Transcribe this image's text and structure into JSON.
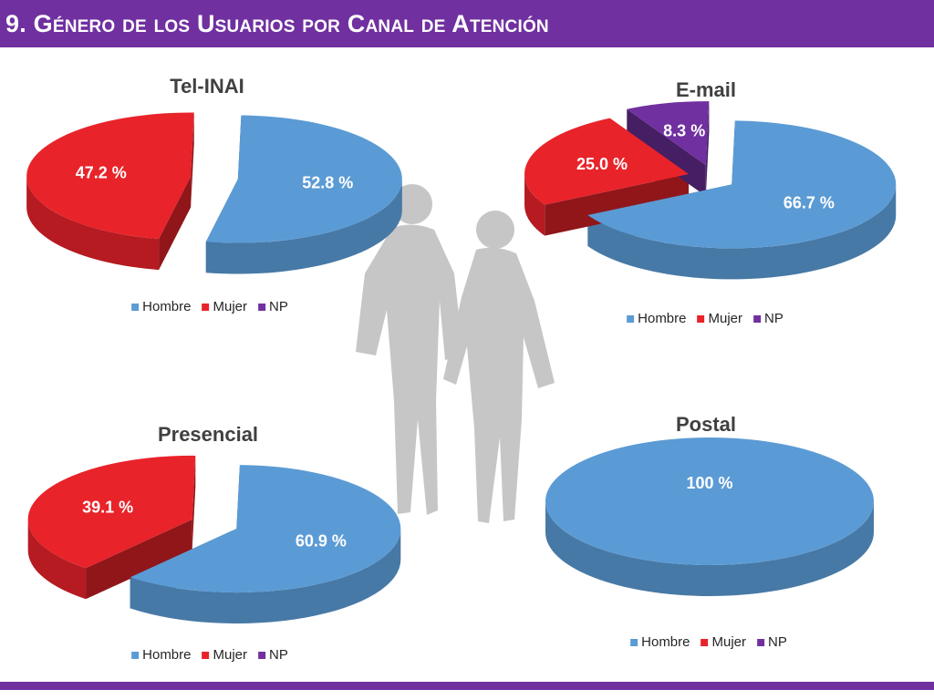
{
  "header": {
    "title": "9. Género de los Usuarios por Canal de Atención"
  },
  "colors": {
    "header": "#7030a0",
    "hombre": "#5b9bd5",
    "mujer": "#e8232a",
    "np": "#7030a0"
  },
  "legend_labels": [
    "Hombre",
    "Mujer",
    "NP"
  ],
  "chart_data": [
    {
      "type": "pie",
      "title": "Tel-INAI",
      "categories": [
        "Hombre",
        "Mujer",
        "NP"
      ],
      "values": [
        52.8,
        47.2,
        0
      ],
      "labels": [
        "52.8 %",
        "47.2 %",
        ""
      ],
      "legend": {
        "position": "bottom",
        "entries": [
          "Hombre",
          "Mujer",
          "NP"
        ]
      }
    },
    {
      "type": "pie",
      "title": "E-mail",
      "categories": [
        "Hombre",
        "Mujer",
        "NP"
      ],
      "values": [
        66.7,
        25.0,
        8.3
      ],
      "labels": [
        "66.7 %",
        "25.0 %",
        "8.3 %"
      ],
      "legend": {
        "position": "bottom",
        "entries": [
          "Hombre",
          "Mujer",
          "NP"
        ]
      }
    },
    {
      "type": "pie",
      "title": "Presencial",
      "categories": [
        "Hombre",
        "Mujer",
        "NP"
      ],
      "values": [
        60.9,
        39.1,
        0
      ],
      "labels": [
        "60.9 %",
        "39.1 %",
        ""
      ],
      "legend": {
        "position": "bottom",
        "entries": [
          "Hombre",
          "Mujer",
          "NP"
        ]
      }
    },
    {
      "type": "pie",
      "title": "Postal",
      "categories": [
        "Hombre",
        "Mujer",
        "NP"
      ],
      "values": [
        100,
        0,
        0
      ],
      "labels": [
        "100 %",
        "",
        ""
      ],
      "legend": {
        "position": "bottom",
        "entries": [
          "Hombre",
          "Mujer",
          "NP"
        ]
      }
    }
  ]
}
